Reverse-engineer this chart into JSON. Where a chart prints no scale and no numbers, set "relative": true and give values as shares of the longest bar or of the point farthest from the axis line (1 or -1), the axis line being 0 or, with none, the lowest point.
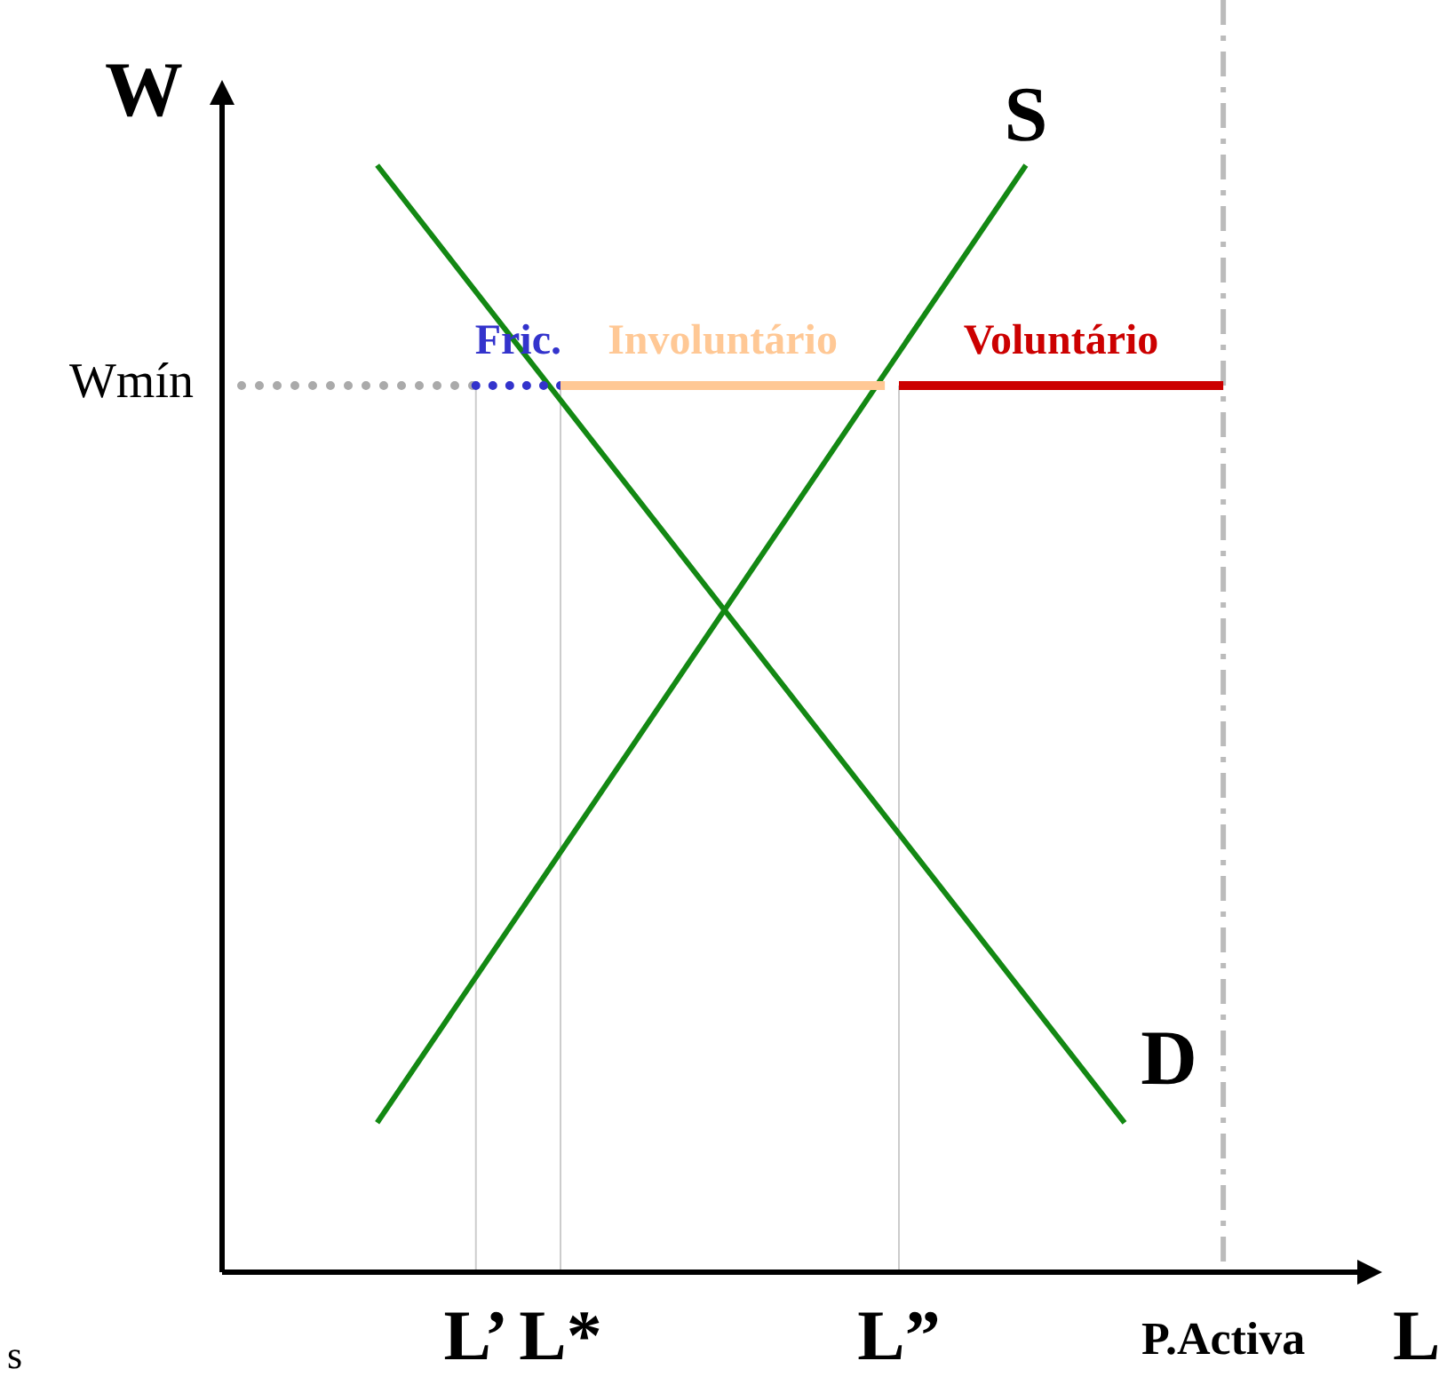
{
  "chart_data": {
    "type": "line",
    "relative": true,
    "xlabel": "L",
    "ylabel": "W",
    "categories": [
      null,
      null,
      null,
      null,
      null,
      null,
      null,
      null,
      null,
      null,
      null,
      null,
      null,
      null,
      null,
      null,
      null,
      null,
      "L’",
      null,
      null,
      null,
      null,
      null,
      "L*",
      null,
      null,
      null,
      null,
      null,
      null,
      null,
      null,
      null,
      null,
      null,
      null,
      null,
      null,
      null,
      null,
      null,
      null,
      null,
      null,
      null,
      null,
      null,
      "L”",
      null,
      null,
      null,
      null,
      null,
      null,
      null,
      null,
      null,
      null,
      null,
      null,
      null,
      null,
      null,
      null,
      null,
      null,
      null,
      null,
      null,
      null,
      "P.Activa",
      null,
      null,
      null,
      null,
      null,
      null,
      null,
      null,
      null
    ],
    "series": [
      {
        "name": "D",
        "color": "#138813",
        "line_style": "solid",
        "values": [
          null,
          null,
          null,
          null,
          null,
          null,
          null,
          null,
          null,
          null,
          null,
          1,
          null,
          null,
          null,
          null,
          null,
          null,
          null,
          null,
          null,
          null,
          null,
          null,
          null,
          null,
          null,
          null,
          null,
          null,
          null,
          null,
          null,
          null,
          null,
          null,
          null,
          null,
          null,
          null,
          null,
          null,
          null,
          null,
          null,
          null,
          null,
          null,
          null,
          null,
          null,
          null,
          null,
          null,
          null,
          null,
          null,
          null,
          null,
          null,
          null,
          null,
          null,
          null,
          0.135,
          null,
          null,
          null,
          null,
          null,
          null,
          null,
          null,
          null,
          null,
          null,
          null,
          null,
          null,
          null,
          null
        ]
      },
      {
        "name": "S",
        "color": "#138813",
        "line_style": "solid",
        "values": [
          null,
          null,
          null,
          null,
          null,
          null,
          null,
          null,
          null,
          null,
          null,
          0.135,
          null,
          null,
          null,
          null,
          null,
          null,
          null,
          null,
          null,
          null,
          null,
          null,
          null,
          null,
          null,
          null,
          null,
          null,
          null,
          null,
          null,
          null,
          null,
          null,
          null,
          null,
          null,
          null,
          null,
          null,
          null,
          null,
          null,
          null,
          null,
          null,
          null,
          null,
          null,
          null,
          null,
          null,
          null,
          null,
          null,
          1,
          null,
          null,
          null,
          null,
          null,
          null,
          null,
          null,
          null,
          null,
          null,
          null,
          null,
          null,
          null,
          null,
          null,
          null,
          null,
          null,
          null,
          null,
          null
        ]
      },
      {
        "name": "Fric.",
        "color": "#3333cc",
        "line_style": "dotted",
        "values": [
          null,
          null,
          null,
          null,
          null,
          null,
          null,
          null,
          null,
          null,
          null,
          null,
          null,
          null,
          null,
          null,
          null,
          null,
          0.801,
          null,
          null,
          null,
          null,
          null,
          0.801,
          null,
          null,
          null,
          null,
          null,
          null,
          null,
          null,
          null,
          null,
          null,
          null,
          null,
          null,
          null,
          null,
          null,
          null,
          null,
          null,
          null,
          null,
          null,
          null,
          null,
          null,
          null,
          null,
          null,
          null,
          null,
          null,
          null,
          null,
          null,
          null,
          null,
          null,
          null,
          null,
          null,
          null,
          null,
          null,
          null,
          null,
          null,
          null,
          null,
          null,
          null,
          null,
          null,
          null,
          null,
          null
        ]
      },
      {
        "name": "Involuntário",
        "color": "#ffc895",
        "line_style": "solid",
        "values": [
          null,
          null,
          null,
          null,
          null,
          null,
          null,
          null,
          null,
          null,
          null,
          null,
          null,
          null,
          null,
          null,
          null,
          null,
          null,
          null,
          null,
          null,
          null,
          null,
          0.801,
          null,
          null,
          null,
          null,
          null,
          null,
          null,
          null,
          null,
          null,
          null,
          null,
          null,
          null,
          null,
          null,
          null,
          null,
          null,
          null,
          null,
          null,
          0.801,
          null,
          null,
          null,
          null,
          null,
          null,
          null,
          null,
          null,
          null,
          null,
          null,
          null,
          null,
          null,
          null,
          null,
          null,
          null,
          null,
          null,
          null,
          null,
          null,
          null,
          null,
          null,
          null,
          null,
          null,
          null,
          null,
          null
        ]
      },
      {
        "name": "Voluntário",
        "color": "#cc0000",
        "line_style": "solid",
        "values": [
          null,
          null,
          null,
          null,
          null,
          null,
          null,
          null,
          null,
          null,
          null,
          null,
          null,
          null,
          null,
          null,
          null,
          null,
          null,
          null,
          null,
          null,
          null,
          null,
          null,
          null,
          null,
          null,
          null,
          null,
          null,
          null,
          null,
          null,
          null,
          null,
          null,
          null,
          null,
          null,
          null,
          null,
          null,
          null,
          null,
          null,
          null,
          null,
          0.801,
          null,
          null,
          null,
          null,
          null,
          null,
          null,
          null,
          null,
          null,
          null,
          null,
          null,
          null,
          null,
          null,
          null,
          null,
          null,
          null,
          null,
          null,
          0.801,
          null,
          null,
          null,
          null,
          null,
          null,
          null,
          null,
          null
        ]
      }
    ],
    "ref_lines": [
      {
        "axis": "x",
        "value": "P.Activa",
        "color": "#bbbbbb",
        "line_style": "dashed"
      },
      {
        "axis": "x",
        "value": "L’",
        "color": "#cccccc",
        "line_style": "solid"
      },
      {
        "axis": "x",
        "value": "L*",
        "color": "#cccccc",
        "line_style": "solid"
      },
      {
        "axis": "x",
        "value": "L”",
        "color": "#cccccc",
        "line_style": "solid"
      },
      {
        "axis": "y",
        "value": 0.801,
        "label": "Wmín",
        "color": "#aaaaaa",
        "line_style": "dotted"
      }
    ],
    "annotations": [
      "s"
    ]
  }
}
